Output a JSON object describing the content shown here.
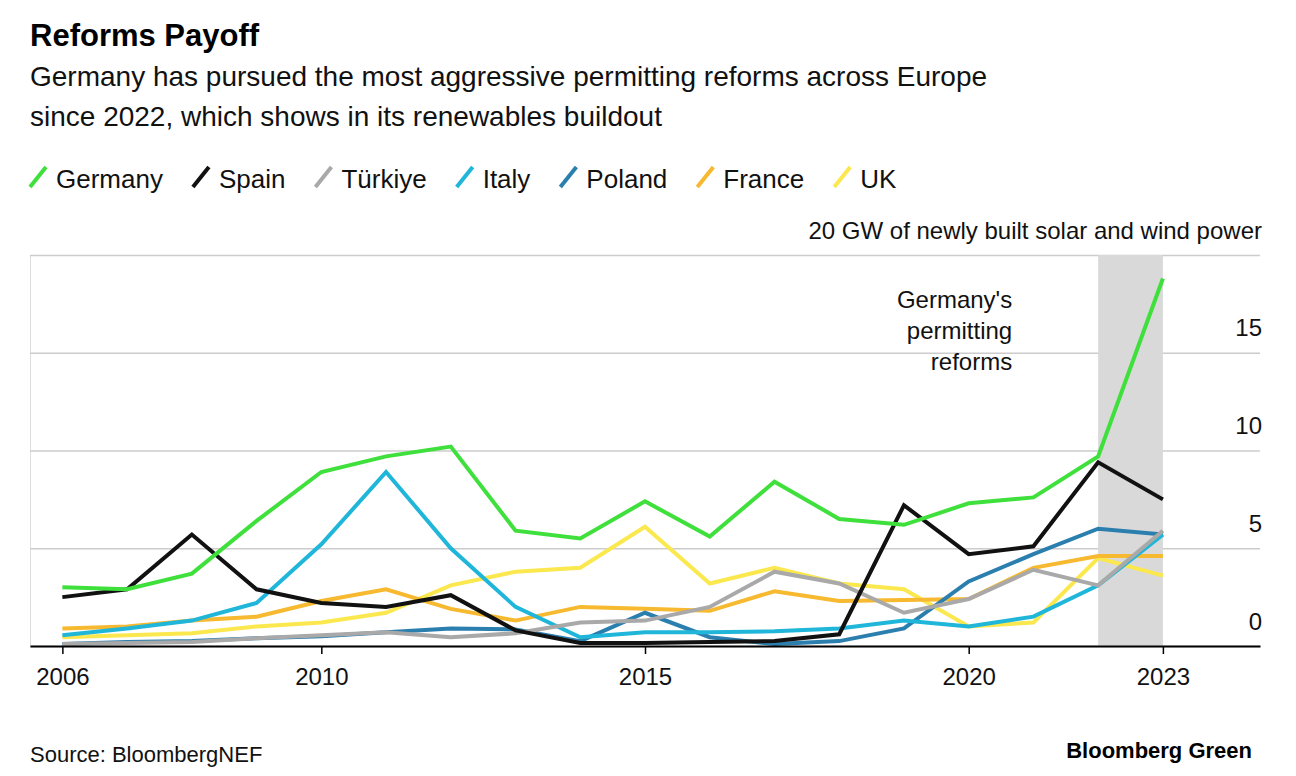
{
  "chart_data": {
    "type": "line",
    "title": "Reforms Payoff",
    "subtitle": [
      "Germany has pursued the most aggressive permitting reforms across Europe",
      "since 2022, which shows in its renewables buildout"
    ],
    "x": [
      2006,
      2007,
      2008,
      2009,
      2010,
      2011,
      2012,
      2013,
      2014,
      2015,
      2016,
      2017,
      2018,
      2019,
      2020,
      2021,
      2022,
      2023
    ],
    "series": [
      {
        "name": "Germany",
        "color": "#3fe03c",
        "values": [
          3.0,
          2.9,
          3.7,
          6.4,
          8.9,
          9.7,
          10.2,
          5.9,
          5.5,
          7.4,
          5.6,
          8.4,
          6.5,
          6.2,
          7.3,
          7.6,
          9.7,
          18.8
        ]
      },
      {
        "name": "Spain",
        "color": "#111111",
        "values": [
          2.5,
          2.9,
          5.7,
          2.9,
          2.2,
          2.0,
          2.6,
          0.8,
          0.15,
          0.15,
          0.2,
          0.25,
          0.6,
          7.2,
          4.7,
          5.1,
          9.4,
          7.5
        ]
      },
      {
        "name": "Türkiye",
        "color": "#a9a9a9",
        "values": [
          0.1,
          0.15,
          0.2,
          0.4,
          0.55,
          0.7,
          0.45,
          0.65,
          1.2,
          1.3,
          2.0,
          3.8,
          3.2,
          1.7,
          2.4,
          3.9,
          3.1,
          5.9
        ]
      },
      {
        "name": "Italy",
        "color": "#1fb6d9",
        "values": [
          0.55,
          0.9,
          1.3,
          2.2,
          5.2,
          8.9,
          5.0,
          2.0,
          0.45,
          0.7,
          0.7,
          0.75,
          0.9,
          1.3,
          1.0,
          1.5,
          3.1,
          5.7
        ]
      },
      {
        "name": "Poland",
        "color": "#2b7fae",
        "values": [
          0.1,
          0.2,
          0.25,
          0.4,
          0.5,
          0.7,
          0.9,
          0.85,
          0.25,
          1.7,
          0.45,
          0.1,
          0.25,
          0.9,
          3.3,
          4.7,
          6.0,
          5.7
        ]
      },
      {
        "name": "France",
        "color": "#f6b92f",
        "values": [
          0.9,
          1.0,
          1.3,
          1.5,
          2.3,
          2.9,
          1.9,
          1.3,
          2.0,
          1.9,
          1.8,
          2.8,
          2.3,
          2.35,
          2.4,
          4.0,
          4.6,
          4.6
        ]
      },
      {
        "name": "UK",
        "color": "#fbe84e",
        "values": [
          0.45,
          0.55,
          0.65,
          1.0,
          1.2,
          1.7,
          3.1,
          3.8,
          4.0,
          6.1,
          3.2,
          4.0,
          3.2,
          2.9,
          1.0,
          1.2,
          4.5,
          3.6
        ]
      }
    ],
    "xlim": [
      2005.5,
      2024.5
    ],
    "xticks": [
      2006,
      2010,
      2015,
      2020,
      2023
    ],
    "ylim": [
      0,
      20
    ],
    "yticks": [
      0,
      5,
      10,
      15,
      {
        "value": 20,
        "label": "20 GW of newly built solar and wind power"
      }
    ],
    "grid": true,
    "legend": "top",
    "annotations": [
      {
        "text": [
          "Germany's",
          "permitting",
          "reforms"
        ],
        "x": [
          2022,
          2023
        ]
      }
    ],
    "source": "Source: BloombergNEF",
    "credit": "Bloomberg Green"
  }
}
